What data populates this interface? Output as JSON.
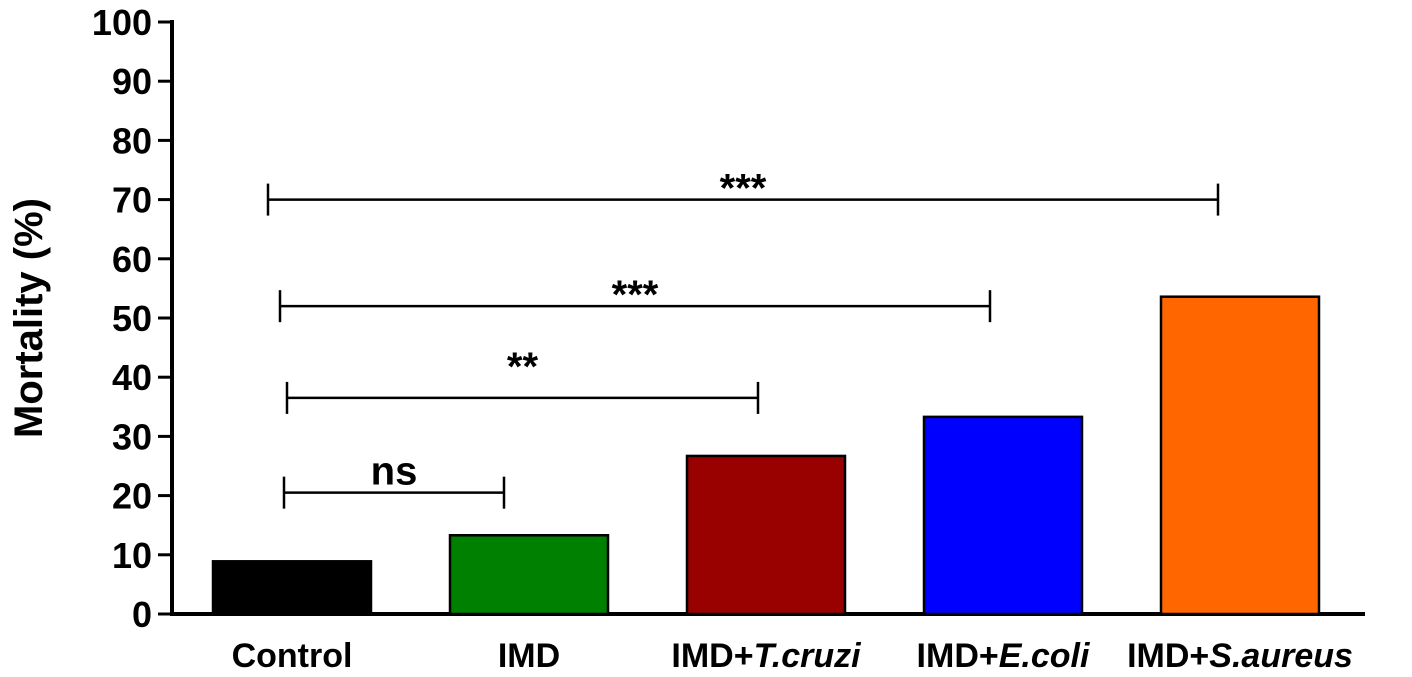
{
  "chart_data": {
    "type": "bar",
    "ylabel": "Mortality (%)",
    "xlabel": "",
    "ylim": [
      0,
      100
    ],
    "yticks": [
      0,
      10,
      20,
      30,
      40,
      50,
      60,
      70,
      80,
      90,
      100
    ],
    "grid": false,
    "categories": [
      {
        "prefix": "Control",
        "italic": ""
      },
      {
        "prefix": "IMD",
        "italic": ""
      },
      {
        "prefix": "IMD+",
        "italic": "T.cruzi"
      },
      {
        "prefix": "IMD+",
        "italic": "E.coli"
      },
      {
        "prefix": "IMD+",
        "italic": "S.aureus"
      }
    ],
    "values": [
      8.9,
      13.3,
      26.7,
      33.3,
      53.6
    ],
    "colors": [
      "#000000",
      "#008000",
      "#990000",
      "#0000ff",
      "#ff6600"
    ],
    "annotations": [
      {
        "label": "ns",
        "from": 0,
        "to": 1,
        "y": 20.5
      },
      {
        "label": "**",
        "from": 0,
        "to": 2,
        "y": 36.5
      },
      {
        "label": "***",
        "from": 0,
        "to": 3,
        "y": 52
      },
      {
        "label": "***",
        "from": 0,
        "to": 4,
        "y": 70
      }
    ]
  }
}
